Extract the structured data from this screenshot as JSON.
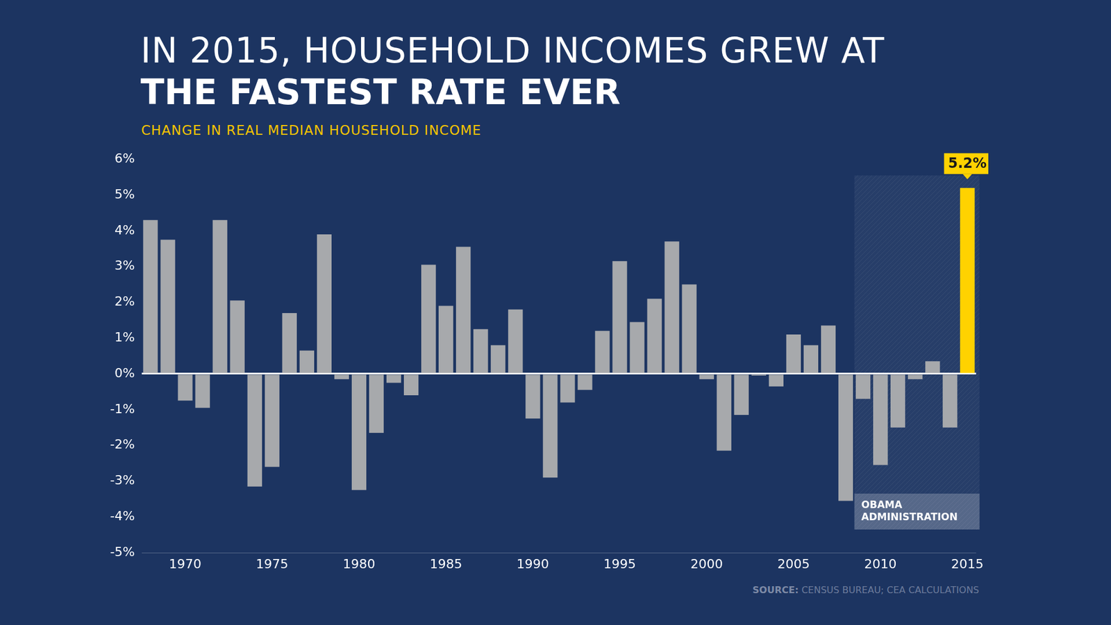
{
  "chart_data": {
    "type": "bar",
    "title": [
      "IN 2015, HOUSEHOLD INCOMES GREW AT",
      "THE FASTEST RATE EVER"
    ],
    "subtitle": "CHANGE IN REAL MEDIAN HOUSEHOLD INCOME",
    "source_label": "SOURCE:",
    "source": "CENSUS BUREAU; CEA CALCULATIONS",
    "x": [
      1968,
      1969,
      1970,
      1971,
      1972,
      1973,
      1974,
      1975,
      1976,
      1977,
      1978,
      1979,
      1980,
      1981,
      1982,
      1983,
      1984,
      1985,
      1986,
      1987,
      1988,
      1989,
      1990,
      1991,
      1992,
      1993,
      1994,
      1995,
      1996,
      1997,
      1998,
      1999,
      2000,
      2001,
      2002,
      2003,
      2004,
      2005,
      2006,
      2007,
      2008,
      2009,
      2010,
      2011,
      2012,
      2013,
      2014,
      2015
    ],
    "values": [
      4.3,
      3.75,
      -0.75,
      -0.95,
      4.3,
      2.05,
      -3.15,
      -2.6,
      1.7,
      0.65,
      3.9,
      -0.15,
      -3.25,
      -1.65,
      -0.25,
      -0.6,
      3.05,
      1.9,
      3.55,
      1.25,
      0.8,
      1.8,
      -1.25,
      -2.9,
      -0.8,
      -0.45,
      1.2,
      3.15,
      1.45,
      2.1,
      3.7,
      2.5,
      -0.15,
      -2.15,
      -1.15,
      -0.05,
      -0.35,
      1.1,
      0.8,
      1.35,
      -3.55,
      -0.7,
      -2.55,
      -1.5,
      -0.15,
      0.35,
      -1.5,
      5.2
    ],
    "colors": [
      "#a7a9ac",
      "#a7a9ac",
      "#a7a9ac",
      "#a7a9ac",
      "#a7a9ac",
      "#a7a9ac",
      "#a7a9ac",
      "#a7a9ac",
      "#a7a9ac",
      "#a7a9ac",
      "#a7a9ac",
      "#a7a9ac",
      "#a7a9ac",
      "#a7a9ac",
      "#a7a9ac",
      "#a7a9ac",
      "#a7a9ac",
      "#a7a9ac",
      "#a7a9ac",
      "#a7a9ac",
      "#a7a9ac",
      "#a7a9ac",
      "#a7a9ac",
      "#a7a9ac",
      "#a7a9ac",
      "#a7a9ac",
      "#a7a9ac",
      "#a7a9ac",
      "#a7a9ac",
      "#a7a9ac",
      "#a7a9ac",
      "#a7a9ac",
      "#a7a9ac",
      "#a7a9ac",
      "#a7a9ac",
      "#a7a9ac",
      "#a7a9ac",
      "#a7a9ac",
      "#a7a9ac",
      "#a7a9ac",
      "#a7a9ac",
      "#a7a9ac",
      "#a7a9ac",
      "#a7a9ac",
      "#a7a9ac",
      "#a7a9ac",
      "#a7a9ac",
      "#ffd200"
    ],
    "data_labels": true,
    "value_labels": [
      null,
      null,
      null,
      null,
      null,
      null,
      null,
      null,
      null,
      null,
      null,
      null,
      null,
      null,
      null,
      null,
      null,
      null,
      null,
      null,
      null,
      null,
      null,
      null,
      null,
      null,
      null,
      null,
      null,
      null,
      null,
      null,
      null,
      null,
      null,
      null,
      null,
      null,
      null,
      null,
      null,
      null,
      null,
      null,
      null,
      null,
      null,
      "5.2%"
    ],
    "xlim": [
      1967.5,
      2015.5
    ],
    "xticks": [
      1970,
      1975,
      1980,
      1985,
      1990,
      1995,
      2000,
      2005,
      2010,
      2015
    ],
    "ylim": [
      -5,
      6
    ],
    "yticks": [
      {
        "value": -5,
        "label": "-5%"
      },
      {
        "value": -4,
        "label": "-4%"
      },
      {
        "value": -3,
        "label": "-3%"
      },
      {
        "value": -2,
        "label": "-2%"
      },
      {
        "value": -1,
        "label": "-1%"
      },
      {
        "value": 0,
        "label": "0%"
      },
      {
        "value": 1,
        "label": "1%"
      },
      {
        "value": 2,
        "label": "2%"
      },
      {
        "value": 3,
        "label": "3%"
      },
      {
        "value": 4,
        "label": "4%"
      },
      {
        "value": 5,
        "label": "5%"
      },
      {
        "value": 6,
        "label": "6%"
      }
    ],
    "grid": false,
    "annotations": [
      {
        "text": "OBAMA ADMINISTRATION",
        "x_range": [
          2008.5,
          2015.5
        ]
      }
    ]
  }
}
